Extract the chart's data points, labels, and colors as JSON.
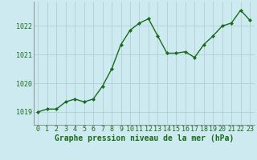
{
  "x": [
    0,
    1,
    2,
    3,
    4,
    5,
    6,
    7,
    8,
    9,
    10,
    11,
    12,
    13,
    14,
    15,
    16,
    17,
    18,
    19,
    20,
    21,
    22,
    23
  ],
  "y": [
    1019.0,
    1019.1,
    1019.1,
    1019.35,
    1019.45,
    1019.35,
    1019.45,
    1019.9,
    1020.5,
    1021.35,
    1021.85,
    1022.1,
    1022.25,
    1021.65,
    1021.05,
    1021.05,
    1021.1,
    1020.9,
    1021.35,
    1021.65,
    1022.0,
    1022.1,
    1022.55,
    1022.2
  ],
  "line_color": "#1a6b1a",
  "marker": "D",
  "marker_size": 2.0,
  "line_width": 1.0,
  "bg_color": "#cdeaf0",
  "grid_color": "#b0cfd8",
  "xlabel": "Graphe pression niveau de la mer (hPa)",
  "xlabel_color": "#1a6b1a",
  "xlabel_fontsize": 7.0,
  "tick_color": "#1a6b1a",
  "tick_fontsize": 6.0,
  "ylim": [
    1018.55,
    1022.85
  ],
  "xlim": [
    -0.5,
    23.5
  ],
  "yticks": [
    1019,
    1020,
    1021,
    1022
  ],
  "xticks": [
    0,
    1,
    2,
    3,
    4,
    5,
    6,
    7,
    8,
    9,
    10,
    11,
    12,
    13,
    14,
    15,
    16,
    17,
    18,
    19,
    20,
    21,
    22,
    23
  ]
}
